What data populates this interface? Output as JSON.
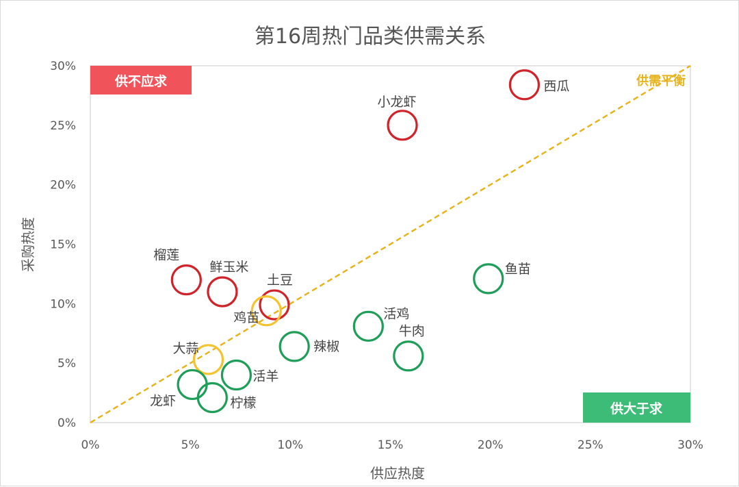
{
  "chart_data": {
    "type": "scatter",
    "title": "第16周热门品类供需关系",
    "xlabel": "供应热度",
    "ylabel": "采购热度",
    "xlim": [
      0,
      30
    ],
    "ylim": [
      0,
      30
    ],
    "x_ticks": [
      "0%",
      "5%",
      "10%",
      "15%",
      "20%",
      "25%",
      "30%"
    ],
    "y_ticks": [
      "0%",
      "5%",
      "10%",
      "15%",
      "20%",
      "25%",
      "30%"
    ],
    "grid": false,
    "quadrant_labels": {
      "top_left": "供不应求",
      "bottom_right": "供大于求",
      "diagonal": "供需平衡"
    },
    "colors": {
      "red": "#d0242b",
      "yellow": "#f3c332",
      "green": "#1f9e5a",
      "top_left_badge": "#f0535a",
      "bottom_right_badge": "#3dbc78",
      "diagonal": "#e6b41e"
    },
    "points": [
      {
        "label": "西瓜",
        "x": 21.7,
        "y": 28.4,
        "color": "red"
      },
      {
        "label": "小龙虾",
        "x": 15.6,
        "y": 25.0,
        "color": "red"
      },
      {
        "label": "榴莲",
        "x": 4.8,
        "y": 12.0,
        "color": "red"
      },
      {
        "label": "鲜玉米",
        "x": 6.6,
        "y": 11.0,
        "color": "red"
      },
      {
        "label": "土豆",
        "x": 9.2,
        "y": 9.9,
        "color": "red"
      },
      {
        "label": "鸡苗",
        "x": 8.8,
        "y": 9.4,
        "color": "yellow"
      },
      {
        "label": "大蒜",
        "x": 5.9,
        "y": 5.3,
        "color": "yellow"
      },
      {
        "label": "鱼苗",
        "x": 19.9,
        "y": 12.1,
        "color": "green"
      },
      {
        "label": "活鸡",
        "x": 13.9,
        "y": 8.1,
        "color": "green"
      },
      {
        "label": "牛肉",
        "x": 15.9,
        "y": 5.6,
        "color": "green"
      },
      {
        "label": "辣椒",
        "x": 10.2,
        "y": 6.4,
        "color": "green"
      },
      {
        "label": "活羊",
        "x": 7.3,
        "y": 4.0,
        "color": "green"
      },
      {
        "label": "龙虾",
        "x": 5.1,
        "y": 3.2,
        "color": "green"
      },
      {
        "label": "柠檬",
        "x": 6.1,
        "y": 2.1,
        "color": "green"
      }
    ]
  }
}
